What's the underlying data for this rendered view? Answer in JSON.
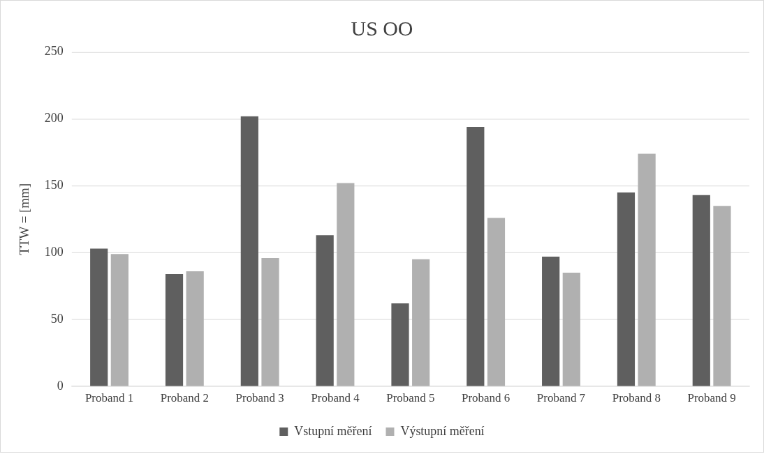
{
  "chart_data": {
    "type": "bar",
    "title": "US OO",
    "ylabel": "TTW = [mm]",
    "categories": [
      "Proband 1",
      "Proband 2",
      "Proband 3",
      "Proband 4",
      "Proband 5",
      "Proband 6",
      "Proband 7",
      "Proband 8",
      "Proband 9"
    ],
    "series": [
      {
        "name": "Vstupní měření",
        "color": "#5f5f5f",
        "values": [
          103,
          84,
          202,
          113,
          62,
          194,
          97,
          145,
          143
        ]
      },
      {
        "name": "Výstupní měření",
        "color": "#b0b0b0",
        "values": [
          99,
          86,
          96,
          152,
          95,
          126,
          85,
          174,
          135
        ]
      }
    ],
    "ylim": [
      0,
      250
    ],
    "yticks": [
      0,
      50,
      100,
      150,
      200,
      250
    ],
    "grid": "y",
    "legend": "bottom"
  }
}
